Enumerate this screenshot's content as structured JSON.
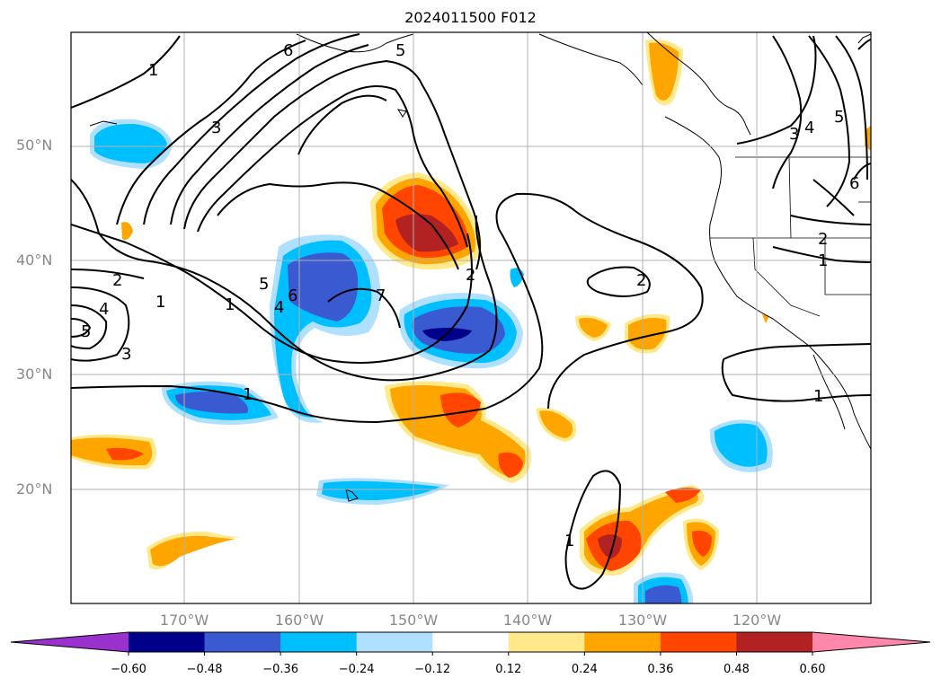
{
  "title": "2024011500 F012",
  "lat_labels": [
    "50°N",
    "40°N",
    "30°N",
    "20°N"
  ],
  "lon_labels": [
    "170°W",
    "160°W",
    "150°W",
    "140°W",
    "130°W",
    "120°W"
  ],
  "colorbar": {
    "ticks": [
      "−0.60",
      "−0.48",
      "−0.36",
      "−0.24",
      "−0.12",
      "0.12",
      "0.24",
      "0.36",
      "0.48",
      "0.60"
    ],
    "colors": [
      "#9932cc",
      "#00008b",
      "#3a5ad1",
      "#00bfff",
      "#b0e0ff",
      "#ffffff",
      "#ffe98a",
      "#ffa500",
      "#ff4500",
      "#b22222",
      "#ff88aa"
    ]
  },
  "contour_labels": [
    "1",
    "3",
    "5",
    "6",
    "5",
    "4",
    "6",
    "7",
    "2",
    "2",
    "4",
    "5",
    "3",
    "1",
    "2",
    "1",
    "2",
    "1",
    "1",
    "1",
    "3",
    "4",
    "5",
    "6",
    "1"
  ]
}
